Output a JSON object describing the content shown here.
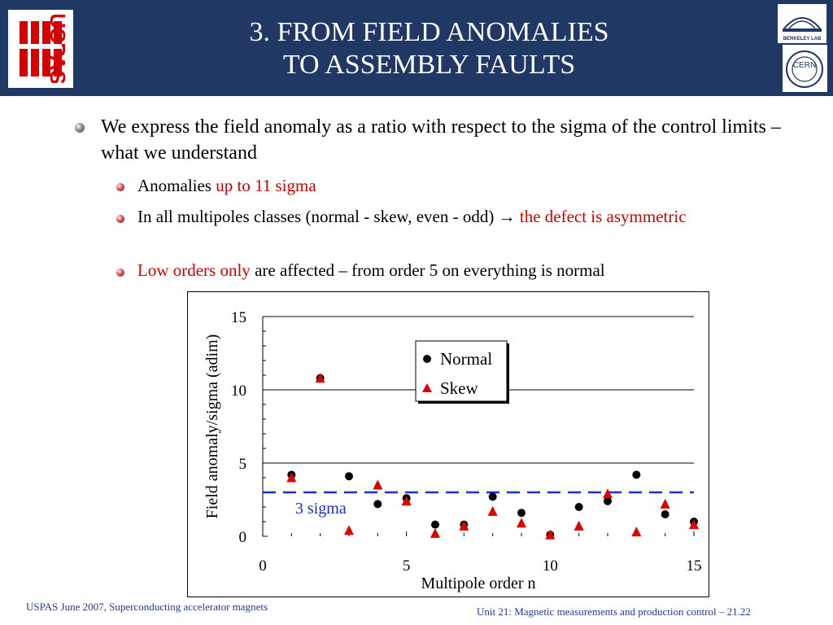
{
  "header": {
    "title_line1": "3. FROM FIELD ANOMALIES",
    "title_line2": "TO ASSEMBLY FAULTS",
    "logo_left_text": "USPAS",
    "logo_right_top_text": "BERKELEY LAB",
    "logo_right_bottom_text": "CERN"
  },
  "bullets": {
    "main": "We express the field anomaly as a ratio with respect to the sigma of the control limits – what we understand",
    "sub1_black": "Anomalies ",
    "sub1_red": "up to 11 sigma",
    "sub2_black": "In all multipoles classes (normal - skew, even - odd) ",
    "sub2_arrow": "→",
    "sub2_red": " the defect is asymmetric",
    "sub3_red": "Low orders only",
    "sub3_black": " are affected – from order 5 on everything is normal"
  },
  "colors": {
    "header_bg": "#1f3864",
    "accent_red": "#d40000",
    "sigma_line": "#1a2fd0",
    "footer_blue": "#1f3b9c"
  },
  "chart_data": {
    "type": "scatter",
    "xlabel": "Multipole order n",
    "ylabel": "Field anomaly/sigma (adim)",
    "xlim": [
      0,
      15
    ],
    "ylim": [
      0,
      15
    ],
    "xticks": [
      0,
      5,
      10,
      15
    ],
    "yticks": [
      0,
      5,
      10,
      15
    ],
    "grid": "horizontal major",
    "legend_position": "top-center",
    "threshold": {
      "value": 3,
      "label": "3 sigma",
      "style": "dashed"
    },
    "series": [
      {
        "name": "Normal",
        "marker": "circle",
        "color": "#000000",
        "points": [
          [
            1,
            4.2
          ],
          [
            2,
            10.8
          ],
          [
            3,
            4.1
          ],
          [
            4,
            2.2
          ],
          [
            5,
            2.6
          ],
          [
            6,
            0.8
          ],
          [
            7,
            0.8
          ],
          [
            8,
            2.7
          ],
          [
            9,
            1.6
          ],
          [
            10,
            0.1
          ],
          [
            11,
            2.0
          ],
          [
            12,
            2.4
          ],
          [
            13,
            4.2
          ],
          [
            14,
            1.5
          ],
          [
            15,
            1.0
          ]
        ]
      },
      {
        "name": "Skew",
        "marker": "triangle",
        "color": "#e00000",
        "points": [
          [
            1,
            4.0
          ],
          [
            2,
            10.8
          ],
          [
            3,
            0.4
          ],
          [
            4,
            3.5
          ],
          [
            5,
            2.4
          ],
          [
            6,
            0.2
          ],
          [
            7,
            0.7
          ],
          [
            8,
            1.7
          ],
          [
            9,
            0.9
          ],
          [
            10,
            0.1
          ],
          [
            11,
            0.7
          ],
          [
            12,
            2.9
          ],
          [
            13,
            0.3
          ],
          [
            14,
            2.2
          ],
          [
            15,
            0.8
          ]
        ]
      }
    ]
  },
  "footer": {
    "left": "USPAS June  2007,  Superconducting accelerator magnets",
    "right": "Unit 21: Magnetic measurements and production control  – 21.22"
  }
}
